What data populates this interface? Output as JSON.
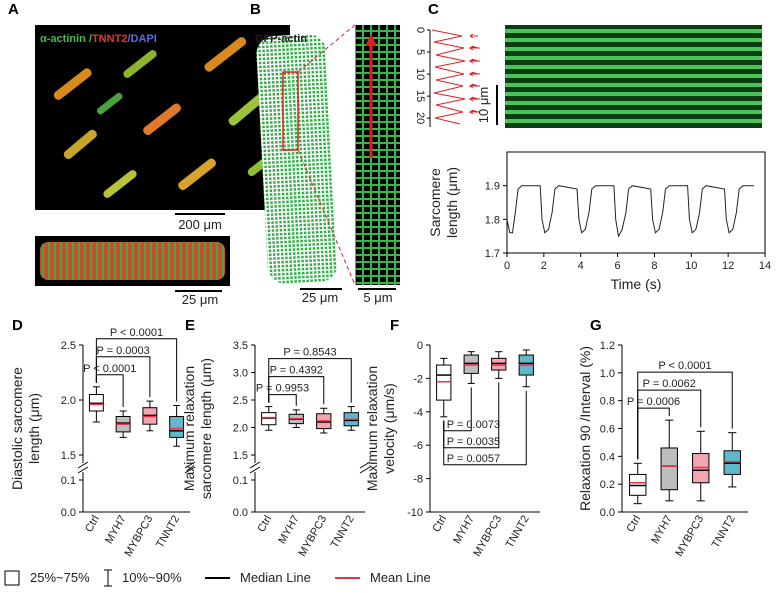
{
  "images": {
    "A": {
      "label": "A",
      "stain": [
        "α-actinin /",
        "TNNT2",
        "/DAPI"
      ],
      "scale_bars": [
        "200 μm",
        "25 μm"
      ]
    },
    "B": {
      "label": "B",
      "stain": "GFP-actin",
      "scale_bars": [
        "25 μm",
        "5 μm"
      ]
    },
    "C": {
      "label": "C",
      "scale_bar": "10 μm"
    }
  },
  "chart_data": [
    {
      "type": "profile",
      "ylim": [
        0,
        22
      ],
      "yticks": [
        0,
        5,
        10,
        15,
        20
      ]
    },
    {
      "type": "line",
      "ylabel": [
        "Sarcomere",
        "length (μm)"
      ],
      "xlabel": "Time (s)",
      "color": "#222",
      "xlim": [
        0,
        14
      ],
      "xticks": [
        0,
        2,
        4,
        6,
        8,
        10,
        12,
        14
      ],
      "ylim": [
        1.7,
        2.0
      ],
      "yticks": [
        1.7,
        1.8,
        1.9
      ],
      "x": [
        0,
        0.15,
        0.3,
        0.45,
        0.6,
        0.8,
        1.8,
        1.9,
        2.05,
        2.25,
        2.45,
        2.6,
        2.8,
        3.8,
        3.9,
        4.05,
        4.25,
        4.45,
        4.6,
        4.8,
        5.8,
        5.9,
        6.05,
        6.25,
        6.45,
        6.6,
        6.8,
        7.8,
        7.9,
        8.05,
        8.25,
        8.45,
        8.6,
        8.8,
        9.8,
        9.9,
        10.05,
        10.25,
        10.45,
        10.6,
        10.8,
        11.8,
        11.9,
        12.05,
        12.25,
        12.45,
        12.6,
        12.8,
        13.4
      ],
      "values": [
        1.8,
        1.76,
        1.76,
        1.82,
        1.89,
        1.9,
        1.9,
        1.8,
        1.76,
        1.77,
        1.82,
        1.89,
        1.9,
        1.89,
        1.8,
        1.76,
        1.77,
        1.82,
        1.89,
        1.9,
        1.9,
        1.8,
        1.75,
        1.77,
        1.82,
        1.89,
        1.9,
        1.89,
        1.8,
        1.76,
        1.77,
        1.82,
        1.89,
        1.9,
        1.9,
        1.8,
        1.76,
        1.77,
        1.82,
        1.89,
        1.9,
        1.89,
        1.8,
        1.76,
        1.77,
        1.82,
        1.89,
        1.9,
        1.9
      ]
    },
    {
      "type": "box",
      "panel": "D",
      "ylabel": [
        "Diastolic sarcomere",
        "length (μm)"
      ],
      "categories": [
        "Ctrl",
        "MYH7",
        "MYBPC3",
        "TNNT2"
      ],
      "colors": [
        "#ffffff",
        "#bdbdbd",
        "#f2a7b0",
        "#5fb8c9"
      ],
      "ylim": [
        1.5,
        2.5
      ],
      "yticks": [
        1.5,
        {
          "value": 2,
          "label": "2.0"
        },
        2.5
      ],
      "ybreak": {
        "ylim": [
          0,
          0.1
        ],
        "yticks": [
          {
            "value": 0,
            "label": "0.0"
          },
          0.1
        ]
      },
      "stats": {
        "p10": [
          1.8,
          1.66,
          1.72,
          1.58
        ],
        "q1": [
          1.9,
          1.71,
          1.78,
          1.66
        ],
        "median": [
          1.97,
          1.79,
          1.86,
          1.72
        ],
        "mean": [
          1.96,
          1.78,
          1.85,
          1.74
        ],
        "q3": [
          2.05,
          1.85,
          1.93,
          1.85
        ],
        "p90": [
          2.12,
          1.9,
          1.99,
          1.95
        ]
      },
      "brackets": "above",
      "comparisons": [
        {
          "pair": [
            "Ctrl",
            "MYH7"
          ],
          "label": "P < 0.0001"
        },
        {
          "pair": [
            "Ctrl",
            "MYBPC3"
          ],
          "label": "P = 0.0003"
        },
        {
          "pair": [
            "Ctrl",
            "TNNT2"
          ],
          "label": "P < 0.0001"
        }
      ]
    },
    {
      "type": "box",
      "panel": "E",
      "ylabel": [
        "Maximum relaxation",
        "sarcomere length (μm)"
      ],
      "categories": [
        "Ctrl",
        "MYH7",
        "MYBPC3",
        "TNNT2"
      ],
      "colors": [
        "#ffffff",
        "#bdbdbd",
        "#f2a7b0",
        "#5fb8c9"
      ],
      "ylim": [
        1.5,
        3.5
      ],
      "yticks": [
        1.5,
        {
          "value": 2,
          "label": "2.0"
        },
        2.5,
        {
          "value": 3,
          "label": "3.0"
        },
        3.5
      ],
      "ybreak": {
        "ylim": [
          0,
          0.1
        ],
        "yticks": [
          {
            "value": 0,
            "label": "0.0"
          },
          0.1
        ]
      },
      "stats": {
        "p10": [
          1.95,
          2.0,
          1.9,
          1.95
        ],
        "q1": [
          2.05,
          2.07,
          1.98,
          2.03
        ],
        "median": [
          2.17,
          2.15,
          2.1,
          2.13
        ],
        "mean": [
          2.18,
          2.16,
          2.12,
          2.15
        ],
        "q3": [
          2.27,
          2.24,
          2.25,
          2.27
        ],
        "p90": [
          2.38,
          2.32,
          2.35,
          2.38
        ]
      },
      "brackets": "above",
      "comparisons": [
        {
          "pair": [
            "Ctrl",
            "MYH7"
          ],
          "label": "P = 0.9953"
        },
        {
          "pair": [
            "Ctrl",
            "MYBPC3"
          ],
          "label": "P = 0.4392"
        },
        {
          "pair": [
            "Ctrl",
            "TNNT2"
          ],
          "label": "P = 0.8543"
        }
      ]
    },
    {
      "type": "box",
      "panel": "F",
      "ylabel": [
        "Maximum relaxation",
        "velocity (μm/s)"
      ],
      "categories": [
        "Ctrl",
        "MYH7",
        "MYBPC3",
        "TNNT2"
      ],
      "colors": [
        "#ffffff",
        "#bdbdbd",
        "#f2a7b0",
        "#5fb8c9"
      ],
      "ylim": [
        -10,
        0
      ],
      "yticks": [
        -10,
        -8,
        -6,
        -4,
        -2,
        0
      ],
      "stats": {
        "p10": [
          -4.3,
          -2.3,
          -2.0,
          -2.5
        ],
        "q1": [
          -3.3,
          -1.7,
          -1.5,
          -1.8
        ],
        "median": [
          -1.8,
          -1.1,
          -1.1,
          -1.1
        ],
        "mean": [
          -2.2,
          -1.2,
          -1.2,
          -1.2
        ],
        "q3": [
          -1.2,
          -0.6,
          -0.8,
          -0.6
        ],
        "p90": [
          -0.8,
          -0.4,
          -0.4,
          -0.3
        ]
      },
      "brackets": "below",
      "comparisons": [
        {
          "pair": [
            "Ctrl",
            "MYH7"
          ],
          "label": "P = 0.0073"
        },
        {
          "pair": [
            "Ctrl",
            "MYBPC3"
          ],
          "label": "P = 0.0035"
        },
        {
          "pair": [
            "Ctrl",
            "TNNT2"
          ],
          "label": "P = 0.0057"
        }
      ]
    },
    {
      "type": "box",
      "panel": "G",
      "ylabel": [
        "Relaxation 90 /Interval (%)"
      ],
      "categories": [
        "Ctrl",
        "MYH7",
        "MYBPC3",
        "TNNT2"
      ],
      "colors": [
        "#ffffff",
        "#bdbdbd",
        "#f2a7b0",
        "#5fb8c9"
      ],
      "ylim": [
        0,
        1.2
      ],
      "yticks": [
        {
          "value": 0,
          "label": "0.0"
        },
        0.2,
        0.4,
        0.6,
        0.8,
        {
          "value": 1,
          "label": "1.0"
        },
        1.2
      ],
      "stats": {
        "p10": [
          0.06,
          0.08,
          0.08,
          0.18
        ],
        "q1": [
          0.12,
          0.16,
          0.21,
          0.27
        ],
        "median": [
          0.19,
          0.33,
          0.3,
          0.35
        ],
        "mean": [
          0.21,
          0.33,
          0.32,
          0.36
        ],
        "q3": [
          0.27,
          0.46,
          0.42,
          0.44
        ],
        "p90": [
          0.35,
          0.66,
          0.58,
          0.57
        ]
      },
      "brackets": "above",
      "comparisons": [
        {
          "pair": [
            "Ctrl",
            "MYH7"
          ],
          "label": "P = 0.0006"
        },
        {
          "pair": [
            "Ctrl",
            "MYBPC3"
          ],
          "label": "P = 0.0062"
        },
        {
          "pair": [
            "Ctrl",
            "TNNT2"
          ],
          "label": "P < 0.0001"
        }
      ]
    }
  ],
  "legend": {
    "items": [
      "25%~75%",
      "10%~90%",
      "Median Line",
      "Mean Line"
    ]
  }
}
